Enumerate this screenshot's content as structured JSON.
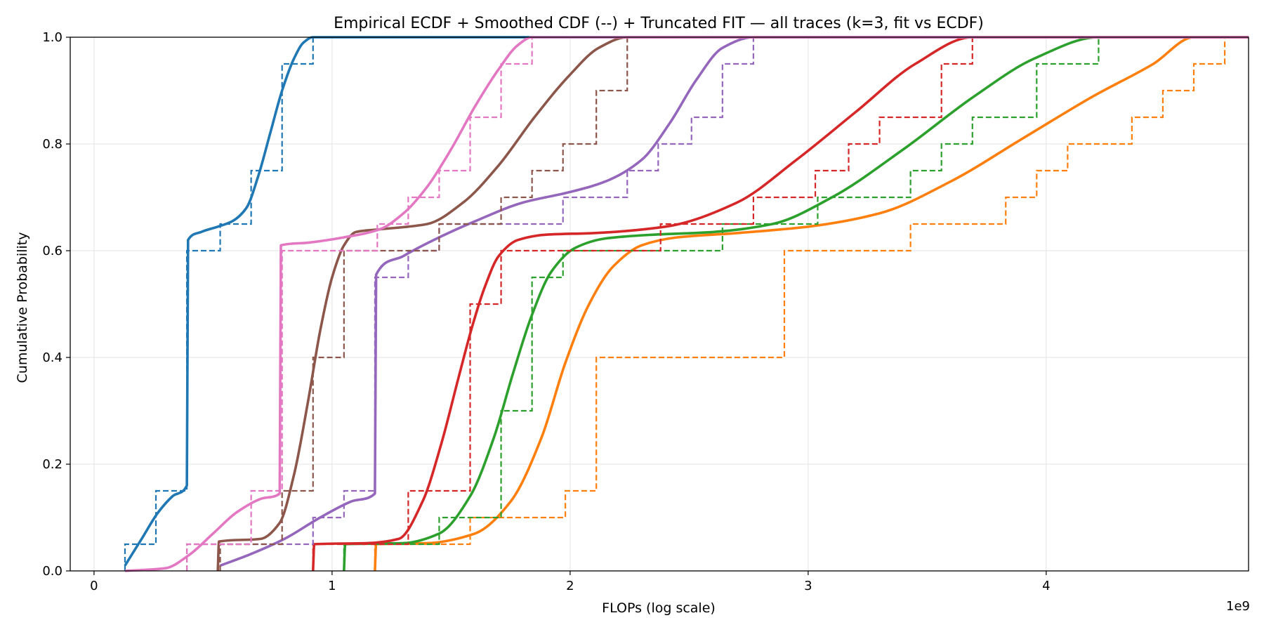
{
  "chart_data": {
    "type": "line",
    "title": "Empirical ECDF + Smoothed CDF (--) + Truncated FIT — all traces (k=3, fit vs ECDF)",
    "xlabel": "FLOPs (log scale)",
    "ylabel": "Cumulative Probability",
    "x_offset_text": "1e9",
    "x_scale_factor": 1000000000,
    "xlim": [
      -0.1,
      4.85
    ],
    "ylim": [
      0.0,
      1.0
    ],
    "xticks": [
      0,
      1,
      2,
      3,
      4
    ],
    "xtick_labels": [
      "0",
      "1",
      "2",
      "3",
      "4"
    ],
    "yticks": [
      0.0,
      0.2,
      0.4,
      0.6,
      0.8,
      1.0
    ],
    "ytick_labels": [
      "0.0",
      "0.2",
      "0.4",
      "0.6",
      "0.8",
      "1.0"
    ],
    "grid": true,
    "series": [
      {
        "color": "#1f77b4",
        "ecdf_x": [
          0.13,
          0.26,
          0.39,
          0.53,
          0.66,
          0.79,
          0.92
        ],
        "ecdf_y": [
          0.05,
          0.15,
          0.6,
          0.65,
          0.75,
          0.95,
          1.0
        ],
        "fit_x": [
          0.13,
          0.2,
          0.27,
          0.33,
          0.39,
          0.395,
          0.45,
          0.52,
          0.58,
          0.64,
          0.69,
          0.74,
          0.79,
          0.84,
          0.88,
          0.92
        ],
        "fit_y": [
          0.01,
          0.06,
          0.11,
          0.14,
          0.16,
          0.62,
          0.635,
          0.645,
          0.655,
          0.68,
          0.74,
          0.82,
          0.9,
          0.96,
          0.99,
          1.0
        ]
      },
      {
        "color": "#ff7f0e",
        "ecdf_x": [
          1.18,
          1.58,
          1.98,
          2.11,
          2.9,
          3.43,
          3.83,
          3.96,
          4.09,
          4.36,
          4.49,
          4.62
        ],
        "ecdf_y": [
          0.05,
          0.1,
          0.15,
          0.4,
          0.6,
          0.65,
          0.7,
          0.75,
          0.8,
          0.85,
          0.9,
          0.95
        ],
        "ecdf_end_y": 1.0,
        "fit_x": [
          1.18,
          1.185,
          1.4,
          1.6,
          1.75,
          1.88,
          1.98,
          2.08,
          2.18,
          2.3,
          2.45,
          2.7,
          3.0,
          3.3,
          3.6,
          3.9,
          4.2,
          4.45,
          4.62
        ],
        "fit_y": [
          0.0,
          0.05,
          0.052,
          0.07,
          0.13,
          0.25,
          0.39,
          0.5,
          0.57,
          0.61,
          0.625,
          0.633,
          0.645,
          0.67,
          0.73,
          0.81,
          0.89,
          0.95,
          1.0
        ]
      },
      {
        "color": "#2ca02c",
        "ecdf_x": [
          1.05,
          1.45,
          1.71,
          1.84,
          1.97,
          2.64,
          3.04,
          3.43,
          3.56,
          3.69,
          3.96
        ],
        "ecdf_y": [
          0.05,
          0.1,
          0.3,
          0.55,
          0.6,
          0.65,
          0.7,
          0.75,
          0.8,
          0.85,
          0.95
        ],
        "ecdf_end_x": 4.22,
        "ecdf_end_y": 1.0,
        "fit_x": [
          1.05,
          1.055,
          1.3,
          1.45,
          1.58,
          1.68,
          1.76,
          1.84,
          1.92,
          2.02,
          2.15,
          2.35,
          2.6,
          2.85,
          3.1,
          3.4,
          3.7,
          3.95,
          4.22
        ],
        "fit_y": [
          0.0,
          0.05,
          0.052,
          0.07,
          0.14,
          0.25,
          0.37,
          0.48,
          0.56,
          0.605,
          0.623,
          0.63,
          0.635,
          0.65,
          0.7,
          0.79,
          0.89,
          0.96,
          1.0
        ]
      },
      {
        "color": "#d62728",
        "ecdf_x": [
          0.92,
          1.32,
          1.58,
          1.71,
          2.38,
          2.77,
          3.03,
          3.17,
          3.3,
          3.56
        ],
        "ecdf_y": [
          0.05,
          0.15,
          0.5,
          0.6,
          0.65,
          0.7,
          0.75,
          0.8,
          0.85,
          0.95
        ],
        "ecdf_end_x": 3.69,
        "ecdf_end_y": 1.0,
        "fit_x": [
          0.92,
          0.925,
          1.15,
          1.28,
          1.38,
          1.46,
          1.53,
          1.59,
          1.64,
          1.7,
          1.78,
          1.9,
          2.1,
          2.4,
          2.7,
          2.95,
          3.2,
          3.45,
          3.69
        ],
        "fit_y": [
          0.0,
          0.05,
          0.052,
          0.06,
          0.13,
          0.24,
          0.36,
          0.46,
          0.53,
          0.59,
          0.62,
          0.63,
          0.633,
          0.645,
          0.69,
          0.77,
          0.86,
          0.95,
          1.0
        ]
      },
      {
        "color": "#9467bd",
        "ecdf_x": [
          0.39,
          0.92,
          1.05,
          1.18,
          1.32,
          1.45,
          1.97,
          2.24,
          2.37,
          2.51,
          2.64,
          2.77
        ],
        "ecdf_y": [
          0.05,
          0.1,
          0.15,
          0.55,
          0.6,
          0.65,
          0.7,
          0.75,
          0.8,
          0.85,
          0.95,
          1.0
        ],
        "fit_x": [
          0.53,
          0.65,
          0.8,
          0.95,
          1.08,
          1.18,
          1.185,
          1.3,
          1.45,
          1.6,
          1.8,
          2.0,
          2.15,
          2.3,
          2.42,
          2.53,
          2.64,
          2.77
        ],
        "fit_y": [
          0.01,
          0.03,
          0.06,
          0.1,
          0.13,
          0.145,
          0.555,
          0.59,
          0.625,
          0.655,
          0.69,
          0.71,
          0.73,
          0.77,
          0.84,
          0.92,
          0.98,
          1.0
        ]
      },
      {
        "color": "#8c564b",
        "ecdf_x": [
          0.53,
          0.79,
          0.92,
          1.05,
          1.45,
          1.71,
          1.84,
          1.97,
          2.11,
          2.24
        ],
        "ecdf_y": [
          0.05,
          0.15,
          0.4,
          0.6,
          0.65,
          0.7,
          0.75,
          0.8,
          0.9,
          1.0
        ],
        "fit_x": [
          0.52,
          0.525,
          0.7,
          0.78,
          0.84,
          0.9,
          0.95,
          1.0,
          1.05,
          1.1,
          1.2,
          1.4,
          1.55,
          1.7,
          1.85,
          2.0,
          2.12,
          2.24
        ],
        "fit_y": [
          0.0,
          0.055,
          0.06,
          0.09,
          0.18,
          0.32,
          0.45,
          0.55,
          0.61,
          0.635,
          0.64,
          0.65,
          0.69,
          0.76,
          0.85,
          0.93,
          0.98,
          1.0
        ]
      },
      {
        "color": "#e377c2",
        "ecdf_x": [
          0.39,
          0.66,
          0.79,
          1.19,
          1.32,
          1.45,
          1.58,
          1.71,
          1.84
        ],
        "ecdf_y": [
          0.05,
          0.15,
          0.6,
          0.65,
          0.7,
          0.75,
          0.85,
          0.95,
          1.0
        ],
        "fit_x": [
          0.13,
          0.3,
          0.4,
          0.5,
          0.6,
          0.7,
          0.78,
          0.785,
          0.9,
          1.05,
          1.2,
          1.3,
          1.4,
          1.5,
          1.6,
          1.7,
          1.78,
          1.84
        ],
        "fit_y": [
          0.0,
          0.005,
          0.03,
          0.07,
          0.11,
          0.135,
          0.145,
          0.61,
          0.615,
          0.625,
          0.64,
          0.67,
          0.72,
          0.79,
          0.87,
          0.94,
          0.985,
          1.0
        ]
      }
    ]
  }
}
